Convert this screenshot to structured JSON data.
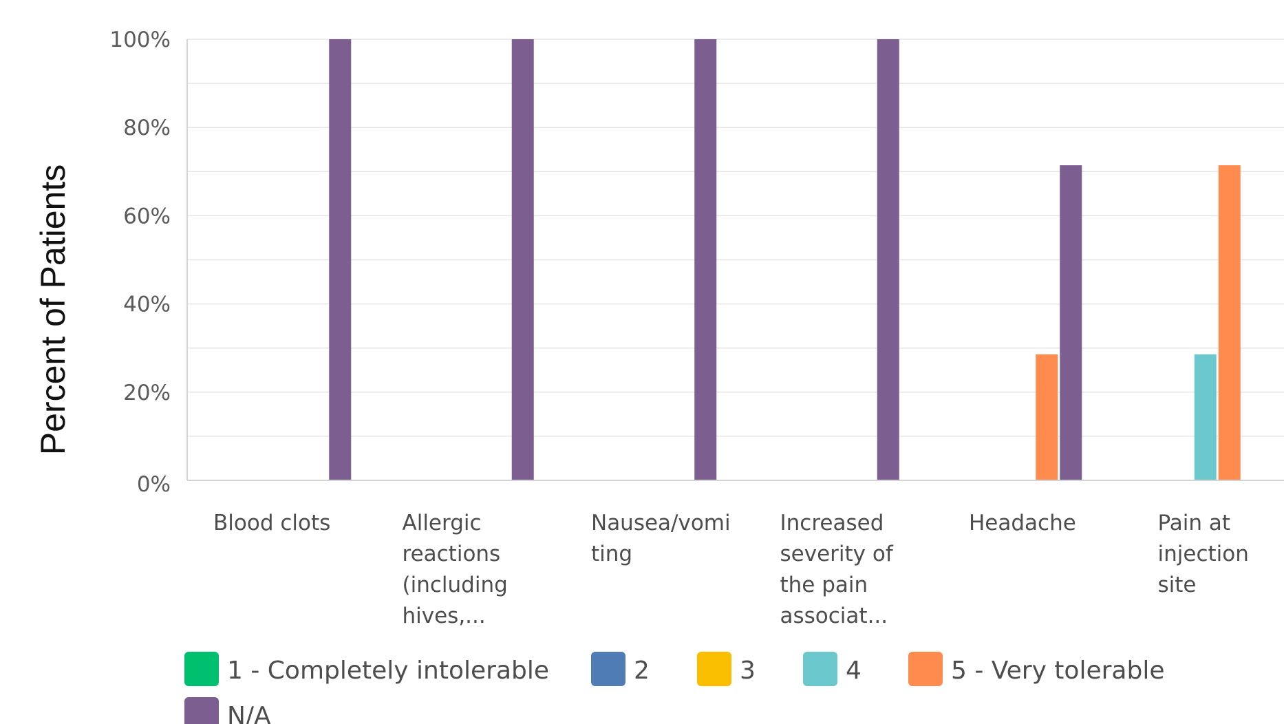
{
  "chart_data": {
    "type": "bar",
    "ylabel": "Percent of Patients",
    "ylim": [
      0,
      100
    ],
    "yticks": [
      "0%",
      "20%",
      "40%",
      "60%",
      "80%",
      "100%"
    ],
    "categories": [
      [
        "Blood clots"
      ],
      [
        "Allergic",
        "reactions",
        "(including",
        "hives,..."
      ],
      [
        "Nausea/vomi",
        "ting"
      ],
      [
        "Increased",
        "severity of",
        "the pain",
        "associat..."
      ],
      [
        "Headache"
      ],
      [
        "Pain at",
        "injection",
        "site"
      ]
    ],
    "series": [
      {
        "name": "1 - Completely intolerable",
        "color": "#00bf6f",
        "values": [
          0,
          0,
          0,
          0,
          0,
          0
        ]
      },
      {
        "name": "2",
        "color": "#507cb6",
        "values": [
          0,
          0,
          0,
          0,
          0,
          0
        ]
      },
      {
        "name": "3",
        "color": "#f9be00",
        "values": [
          0,
          0,
          0,
          0,
          0,
          0
        ]
      },
      {
        "name": "4",
        "color": "#6bc8cd",
        "values": [
          0,
          0,
          0,
          0,
          0,
          28.57
        ]
      },
      {
        "name": "5 - Very tolerable",
        "color": "#ff8b4f",
        "values": [
          0,
          0,
          0,
          0,
          28.57,
          71.43
        ]
      },
      {
        "name": "N/A",
        "color": "#7d5e90",
        "values": [
          100,
          100,
          100,
          100,
          71.43,
          0
        ]
      }
    ],
    "grid": true,
    "legend_position": "bottom-left"
  }
}
